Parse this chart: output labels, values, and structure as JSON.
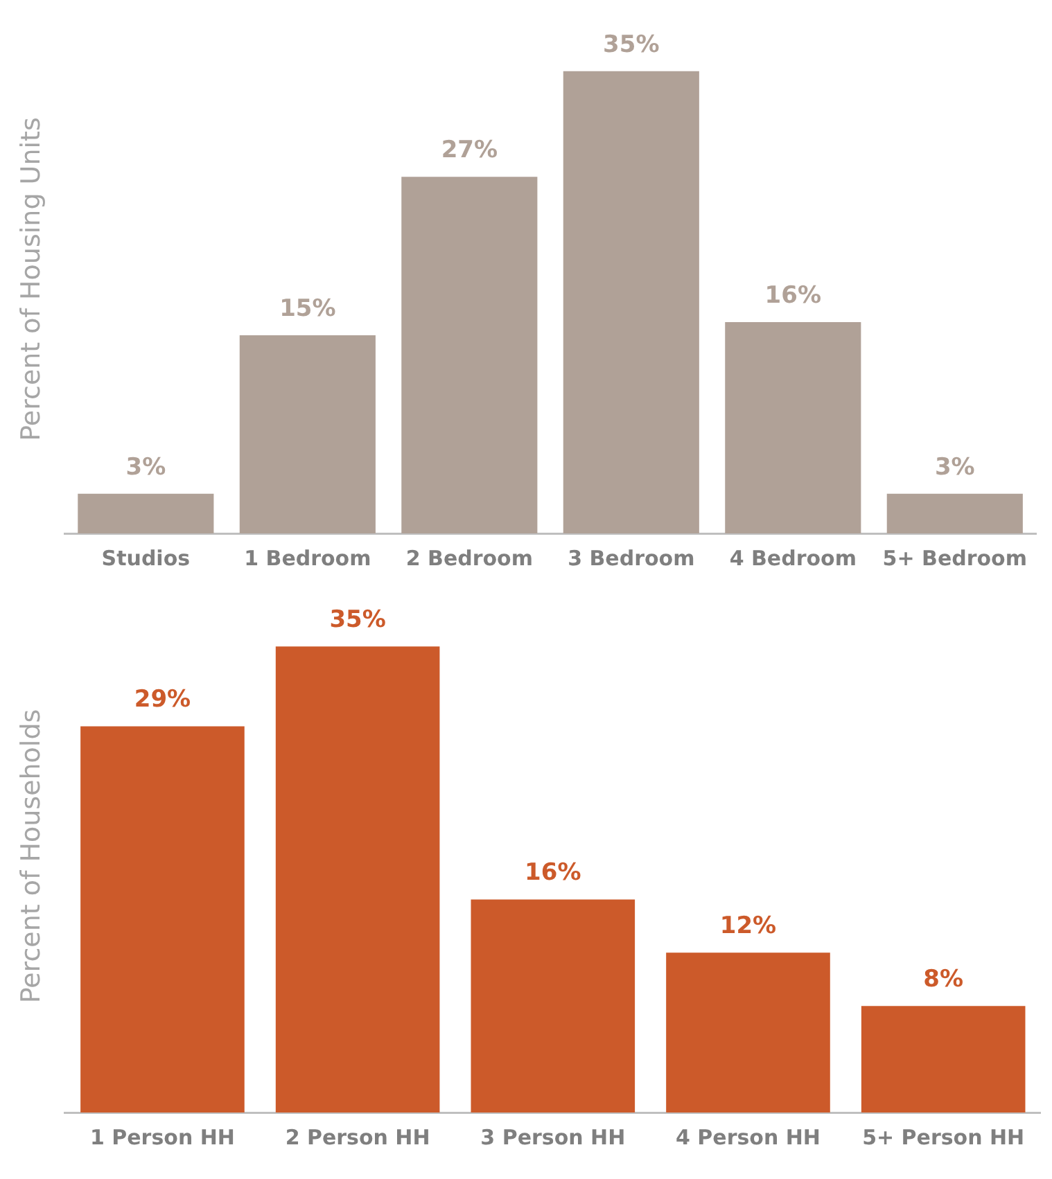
{
  "chart_data": [
    {
      "type": "bar",
      "ylabel": "Percent of Housing Units",
      "categories": [
        "Studios",
        "1 Bedroom",
        "2 Bedroom",
        "3 Bedroom",
        "4 Bedroom",
        "5+ Bedroom"
      ],
      "values": [
        3,
        15,
        27,
        35,
        16,
        3
      ],
      "value_labels": [
        "3%",
        "15%",
        "27%",
        "35%",
        "16%",
        "3%"
      ],
      "color": "#b0a197",
      "grid": false,
      "legend": false
    },
    {
      "type": "bar",
      "ylabel": "Percent of Households",
      "categories": [
        "1 Person HH",
        "2 Person HH",
        "3 Person HH",
        "4 Person HH",
        "5+ Person HH"
      ],
      "values": [
        29,
        35,
        16,
        12,
        8
      ],
      "value_labels": [
        "29%",
        "35%",
        "16%",
        "12%",
        "8%"
      ],
      "color": "#cc5a2a",
      "grid": false,
      "legend": false
    }
  ]
}
